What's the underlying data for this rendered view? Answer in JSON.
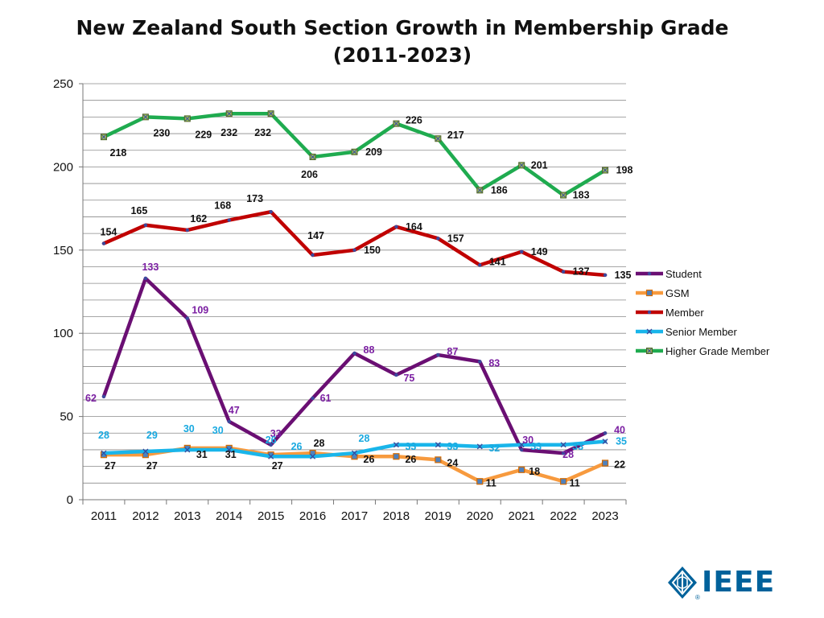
{
  "chart_data": {
    "type": "line",
    "title_line1": "New Zealand South Section Growth in Membership Grade",
    "title_line2": "(2011-2023)",
    "categories": [
      "2011",
      "2012",
      "2013",
      "2014",
      "2015",
      "2016",
      "2017",
      "2018",
      "2019",
      "2020",
      "2021",
      "2022",
      "2023"
    ],
    "ylim": [
      0,
      250
    ],
    "yticks": [
      "0",
      "50",
      "100",
      "150",
      "200",
      "250"
    ],
    "grid": true,
    "legend_position": "right",
    "series": [
      {
        "name": "Student",
        "color": "#6a0f73",
        "label_color": "#7b1fa2",
        "marker": "dot",
        "values": [
          62,
          133,
          109,
          47,
          33,
          61,
          88,
          75,
          87,
          83,
          30,
          28,
          40
        ],
        "labels": [
          "62",
          "133",
          "109",
          "47",
          "33",
          "61",
          "88",
          "75",
          "87",
          "83",
          "30",
          "28",
          "40"
        ]
      },
      {
        "name": "GSM",
        "color": "#f79a3e",
        "label_color": "#111111",
        "marker": "square",
        "values": [
          27,
          27,
          31,
          31,
          27,
          28,
          26,
          26,
          24,
          11,
          18,
          11,
          22
        ],
        "labels": [
          "27",
          "27",
          "31",
          "31",
          "27",
          "28",
          "26",
          "26",
          "24",
          "11",
          "18",
          "11",
          "22"
        ]
      },
      {
        "name": "Member",
        "color": "#c00000",
        "label_color": "#111111",
        "marker": "dot",
        "values": [
          154,
          165,
          162,
          168,
          173,
          147,
          150,
          164,
          157,
          141,
          149,
          137,
          135
        ],
        "labels": [
          "154",
          "165",
          "162",
          "168",
          "173",
          "147",
          "150",
          "164",
          "157",
          "141",
          "149",
          "137",
          "135"
        ]
      },
      {
        "name": "Senior Member",
        "color": "#19b5ea",
        "label_color": "#19a9e0",
        "marker": "x",
        "values": [
          28,
          29,
          30,
          30,
          26,
          26,
          28,
          33,
          33,
          32,
          33,
          33,
          35
        ],
        "labels": [
          "28",
          "29",
          "30",
          "30",
          "26",
          "26",
          "28",
          "33",
          "33",
          "32",
          "33",
          "33",
          "35"
        ]
      },
      {
        "name": "Higher Grade Member",
        "color": "#1fab4f",
        "label_color": "#111111",
        "marker": "squarex",
        "values": [
          218,
          230,
          229,
          232,
          232,
          206,
          209,
          226,
          217,
          186,
          201,
          183,
          198
        ],
        "labels": [
          "218",
          "230",
          "229",
          "232",
          "232",
          "206",
          "209",
          "226",
          "217",
          "186",
          "201",
          "183",
          "198"
        ]
      }
    ]
  },
  "logo": {
    "text": "IEEE",
    "reg": "®"
  }
}
